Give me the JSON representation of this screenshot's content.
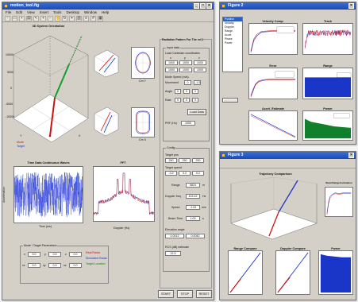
{
  "main_window": {
    "title": "motion_tool.fig",
    "menus": [
      "File",
      "Edit",
      "View",
      "Insert",
      "Tools",
      "Desktop",
      "Window",
      "Help"
    ],
    "toolbar_icons": [
      "new-file-icon",
      "open-folder-icon",
      "save-icon",
      "print-icon",
      "arrow-pointer-icon",
      "zoom-in-icon",
      "zoom-out-icon",
      "pan-hand-icon",
      "rotate-3d-icon",
      "data-cursor-icon",
      "colorbar-icon",
      "legend-icon",
      "grid-icon",
      "plot-tools-icon"
    ],
    "plot_3d": {
      "title": "3D System Orientation",
      "axis_label_y": "Y",
      "axis_label_x": "X",
      "z_ticks": [
        "10000",
        "5000",
        "0",
        "-5000",
        "-10000"
      ],
      "marker_labels": [
        "Mode",
        "Target"
      ]
    },
    "small_plots": {
      "top_left_title": "Top",
      "top_right_title": "Side",
      "bottom_left_title": "Front",
      "bottom_right_title": "Rear",
      "top_right_xlabel": "Cm Y",
      "bottom_right_xlabel": "Cm X"
    },
    "time_plot": {
      "title": "Time Data Continuous Waves",
      "xlabel": "Time (ms)",
      "ylabel": "Acceleration"
    },
    "fft_plot": {
      "title": "FFT",
      "xlabel": "Doppler (Hz)",
      "x_ticks": [
        "-600",
        "-400",
        "-200",
        "0",
        "200",
        "400",
        "600"
      ]
    },
    "right_panel": {
      "title": "Radiation Pattern For The ref.2",
      "group1_label": "Input data",
      "group1_sub": "Load Cartesian coordinates",
      "label_xyz": [
        "x",
        "y",
        "z"
      ],
      "row_a": [
        "1000",
        "1000",
        "1000"
      ],
      "row_b": [
        "1000",
        "1000",
        "1000"
      ],
      "label_mode": "Mode Speed (m/s)",
      "label_move": "Movement",
      "mode_value": "0",
      "speed_value": "-1.04",
      "angle_label": "Angle",
      "angle_values": [
        "0",
        "0",
        "0"
      ],
      "rate_label": "Rate",
      "rate_values": [
        "0",
        "0",
        "0"
      ],
      "load_button": "Load Data",
      "prf_label": "PRF (Hz)",
      "prf_value": "1000",
      "group2_label": "Config",
      "target_pos_label": "Target pos",
      "target_pos_values": [
        "250",
        "250",
        "250"
      ],
      "target_spd_label": "Target speed",
      "target_spd_values": [
        "-0.2",
        "0.2",
        "0.2"
      ],
      "range_label": "Range",
      "range_value": "5824",
      "range_unit": "m",
      "doppler_label": "Doppler freq",
      "doppler_value": "415.42",
      "doppler_unit": "Hz",
      "speed_label": "Speed",
      "speed_unit": "m/s",
      "beam_label": "Beam Time",
      "beam_value": "1.00",
      "beam_unit": "s",
      "elev_label": "Elevation angle",
      "elev_values": [
        "0.0012",
        "0.0042"
      ],
      "rcs_label": "RCS (dB) estimate",
      "rcs_value": "12.5"
    },
    "bottom_left": {
      "group_label": "Mode / Target Parameters",
      "fields": [
        {
          "label": "x",
          "value": "0.0"
        },
        {
          "label": "y",
          "value": "0.0"
        },
        {
          "label": "z",
          "value": "0.0"
        },
        {
          "label": "vx",
          "value": "0.0"
        },
        {
          "label": "vy",
          "value": "0.0"
        },
        {
          "label": "vz",
          "value": "0.0"
        }
      ],
      "legend": [
        "Real Radar",
        "Simulated Radar",
        "Target Location"
      ]
    },
    "buttons": [
      "START",
      "STOP",
      "RESET"
    ]
  },
  "top_right_window": {
    "title": "Figure 2",
    "list_items": [
      "Position",
      "Velocity",
      "Doppler",
      "Range",
      "Accel.",
      "Phase",
      "Power"
    ],
    "plot_titles": [
      "Velocity Comp.",
      "Track",
      "Error",
      "Range",
      "Accel. Estimate",
      "Power"
    ]
  },
  "bottom_right_window": {
    "title": "Figure 3",
    "plot3d_title": "Trajectory Comparison",
    "side_title": "Slant Range Estimation",
    "bottom_titles": [
      "Range Compare",
      "Doppler Compare",
      "Power"
    ]
  },
  "colors": {
    "title_blue": "#1c49b4",
    "window_gray": "#d4d0c8",
    "signal_blue": "#1a36c8",
    "signal_red": "#d01010",
    "signal_green": "#10a030"
  }
}
